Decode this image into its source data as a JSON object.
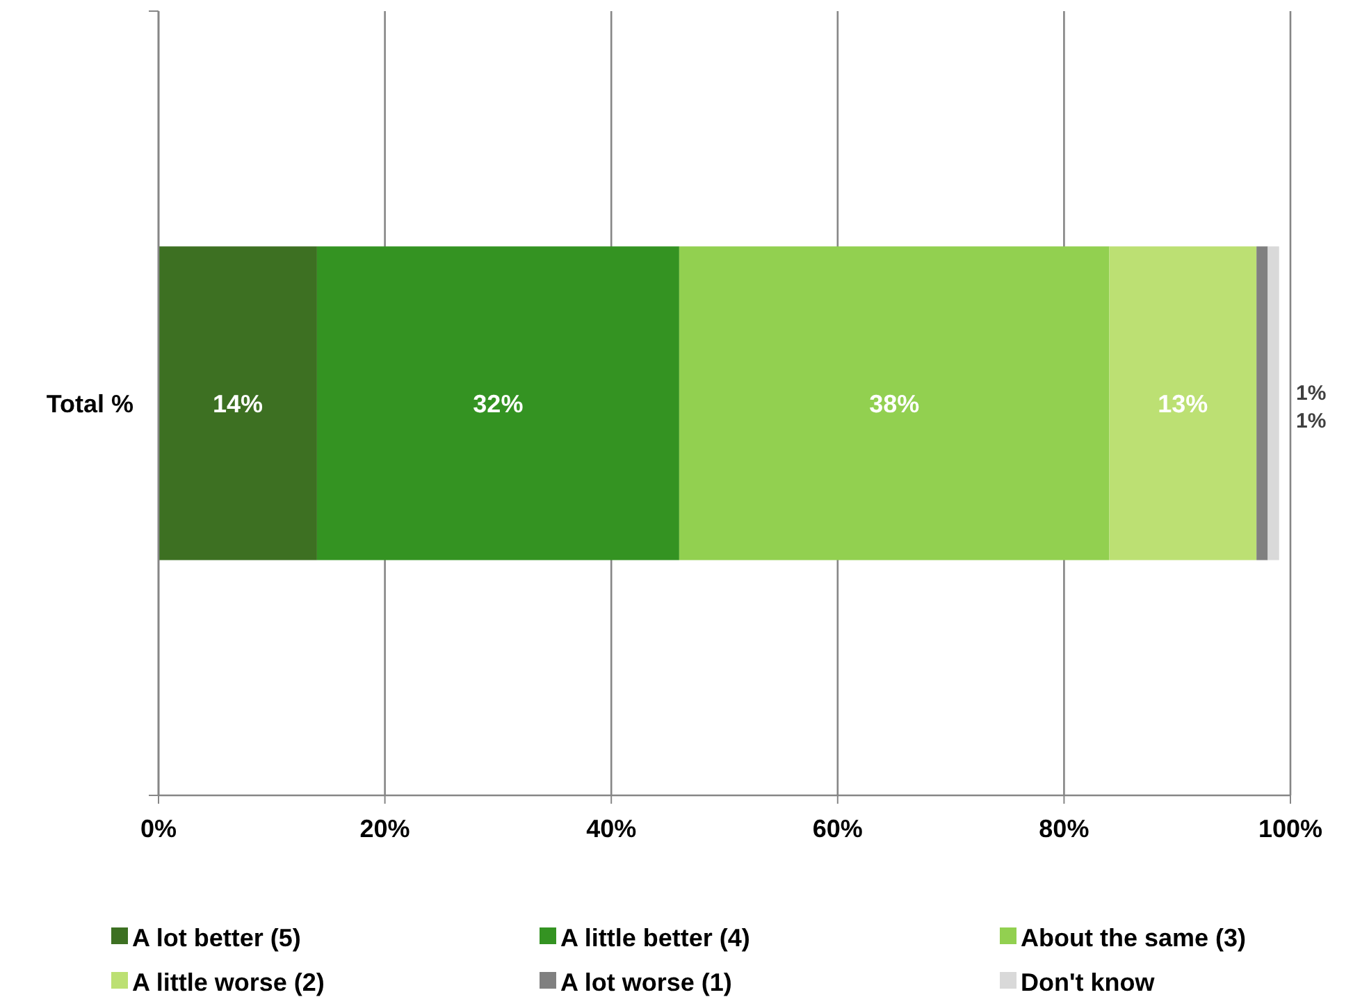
{
  "chart_data": {
    "type": "bar",
    "orientation": "horizontal",
    "stacked": true,
    "categories": [
      "Total %"
    ],
    "series": [
      {
        "name": "A lot better (5)",
        "color": "#3d7022",
        "values": [
          14
        ],
        "value_labels": [
          "14%"
        ]
      },
      {
        "name": "A little better (4)",
        "color": "#349322",
        "values": [
          32
        ],
        "value_labels": [
          "32%"
        ]
      },
      {
        "name": "About the same (3)",
        "color": "#92d050",
        "values": [
          38
        ],
        "value_labels": [
          "38%"
        ]
      },
      {
        "name": "A little worse (2)",
        "color": "#bce073",
        "values": [
          13
        ],
        "value_labels": [
          "13%"
        ]
      },
      {
        "name": "A lot worse (1)",
        "color": "#808080",
        "values": [
          1
        ],
        "value_labels": [
          "1%"
        ]
      },
      {
        "name": "Don't know",
        "color": "#d9d9d9",
        "values": [
          1
        ],
        "value_labels": [
          "1%"
        ]
      }
    ],
    "xlim": [
      0,
      100
    ],
    "xticks": [
      {
        "value": 0,
        "label": "0%"
      },
      {
        "value": 20,
        "label": "20%"
      },
      {
        "value": 40,
        "label": "40%"
      },
      {
        "value": 60,
        "label": "60%"
      },
      {
        "value": 80,
        "label": "80%"
      },
      {
        "value": 100,
        "label": "100%"
      }
    ],
    "grid": "x",
    "legend": "bottom"
  }
}
